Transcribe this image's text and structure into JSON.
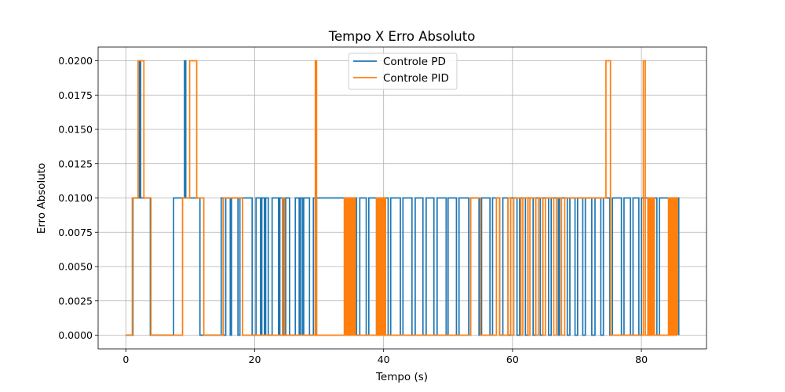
{
  "chart_data": {
    "type": "line",
    "title": "Tempo X Erro Absoluto",
    "xlabel": "Tempo (s)",
    "ylabel": "Erro Absoluto",
    "xlim": [
      -4.3,
      90.1
    ],
    "ylim": [
      -0.001,
      0.021
    ],
    "grid": true,
    "legend_position": "top-center",
    "x_ticks": [
      0,
      20,
      40,
      60,
      80
    ],
    "x_tick_labels": [
      "0",
      "20",
      "40",
      "60",
      "80"
    ],
    "y_ticks": [
      0.0,
      0.0025,
      0.005,
      0.0075,
      0.01,
      0.0125,
      0.015,
      0.0175,
      0.02
    ],
    "y_tick_labels": [
      "0.0000",
      "0.0025",
      "0.0050",
      "0.0075",
      "0.0100",
      "0.0125",
      "0.0150",
      "0.0175",
      "0.0200"
    ],
    "series": [
      {
        "name": "Controle PD",
        "color": "#1f77b4",
        "step": "post",
        "x": [
          0,
          1.1,
          2.1,
          2.3,
          2.5,
          3.8,
          7.4,
          9.1,
          9.3,
          11.5,
          14.8,
          15.1,
          15.5,
          16.2,
          16.4,
          17.4,
          17.7,
          19.6,
          20.2,
          20.9,
          21.1,
          21.5,
          21.7,
          22.1,
          22.7,
          23.7,
          23.9,
          24.5,
          24.8,
          25.4,
          26.3,
          26.9,
          27.1,
          27.4,
          27.6,
          28.5,
          29.1,
          29.4,
          29.6,
          34.4,
          34.8,
          35.8,
          36.3,
          37.3,
          37.7,
          38.9,
          39.3,
          40.7,
          41.1,
          42.6,
          43.0,
          44.4,
          44.9,
          46.1,
          46.6,
          47.8,
          48.3,
          49.7,
          50.0,
          51.3,
          51.7,
          53.2,
          53.5,
          54.8,
          55.2,
          56.5,
          56.9,
          58.0,
          58.5,
          59.3,
          59.7,
          60.7,
          61.1,
          62.0,
          62.4,
          63.2,
          63.6,
          64.3,
          64.7,
          65.6,
          66.0,
          67.1,
          67.3,
          68.5,
          68.9,
          69.7,
          70.1,
          70.9,
          71.3,
          72.3,
          72.8,
          73.7,
          74.1,
          75.1,
          75.5,
          76.9,
          77.3,
          78.3,
          78.7,
          79.6,
          80.0,
          81.1,
          81.5,
          82.4,
          82.8,
          85.8
        ],
        "y": [
          0,
          0.01,
          0.02,
          0.01,
          0.01,
          0,
          0.01,
          0.02,
          0.01,
          0,
          0.01,
          0,
          0.01,
          0,
          0.01,
          0,
          0.01,
          0,
          0.01,
          0,
          0.01,
          0,
          0.01,
          0,
          0.01,
          0,
          0.01,
          0,
          0.01,
          0,
          0.01,
          0,
          0.01,
          0,
          0.01,
          0,
          0.01,
          0,
          0.01,
          0,
          0.01,
          0,
          0.01,
          0,
          0.01,
          0,
          0.01,
          0,
          0.01,
          0,
          0.01,
          0,
          0.01,
          0,
          0.01,
          0,
          0.01,
          0,
          0.01,
          0,
          0.01,
          0,
          0.01,
          0,
          0.01,
          0,
          0.01,
          0,
          0.01,
          0,
          0.01,
          0,
          0.01,
          0,
          0.01,
          0,
          0.01,
          0,
          0.01,
          0,
          0.01,
          0,
          0.01,
          0,
          0.01,
          0,
          0.01,
          0,
          0.01,
          0,
          0.01,
          0,
          0.01,
          0,
          0.01,
          0,
          0.01,
          0,
          0.01,
          0,
          0.01,
          0,
          0.01,
          0,
          0.01,
          0
        ]
      },
      {
        "name": "Controle PID",
        "color": "#ff7f0e",
        "step": "post",
        "x": [
          0,
          1.0,
          1.9,
          2.8,
          3.9,
          8.8,
          9.9,
          11.0,
          12.1,
          15.1,
          17.7,
          18.1,
          24.3,
          24.6,
          29.4,
          29.6,
          33.9,
          34.1,
          34.3,
          34.5,
          34.7,
          34.9,
          35.1,
          35.3,
          35.5,
          35.6,
          38.9,
          39.1,
          39.3,
          39.5,
          39.7,
          39.9,
          40.1,
          40.3,
          53.5,
          55.0,
          57.5,
          58.0,
          59.3,
          59.7,
          60.2,
          61.3,
          61.6,
          62.4,
          62.7,
          63.6,
          64.0,
          64.7,
          65.1,
          66.4,
          66.8,
          67.6,
          68.1,
          74.5,
          75.2,
          80.3,
          80.6,
          81.0,
          81.2,
          81.4,
          81.6,
          81.8,
          82.0,
          82.1,
          84.2,
          84.4,
          84.6,
          84.8,
          85.0,
          85.2,
          85.4,
          85.6
        ],
        "y": [
          0,
          0.01,
          0.02,
          0.01,
          0,
          0.01,
          0.02,
          0.01,
          0,
          0.01,
          0.01,
          0,
          0.01,
          0,
          0.02,
          0,
          0.01,
          0,
          0.01,
          0,
          0.01,
          0,
          0.01,
          0,
          0.01,
          0,
          0.01,
          0,
          0.01,
          0,
          0.01,
          0,
          0.01,
          0,
          0.01,
          0,
          0.01,
          0,
          0.01,
          0,
          0.01,
          0,
          0.01,
          0,
          0.01,
          0,
          0.01,
          0,
          0.01,
          0,
          0.01,
          0,
          0.01,
          0.02,
          0,
          0.02,
          0,
          0.01,
          0,
          0.01,
          0,
          0.01,
          0,
          0,
          0.01,
          0,
          0.01,
          0,
          0.01,
          0,
          0.01,
          0
        ]
      }
    ]
  }
}
